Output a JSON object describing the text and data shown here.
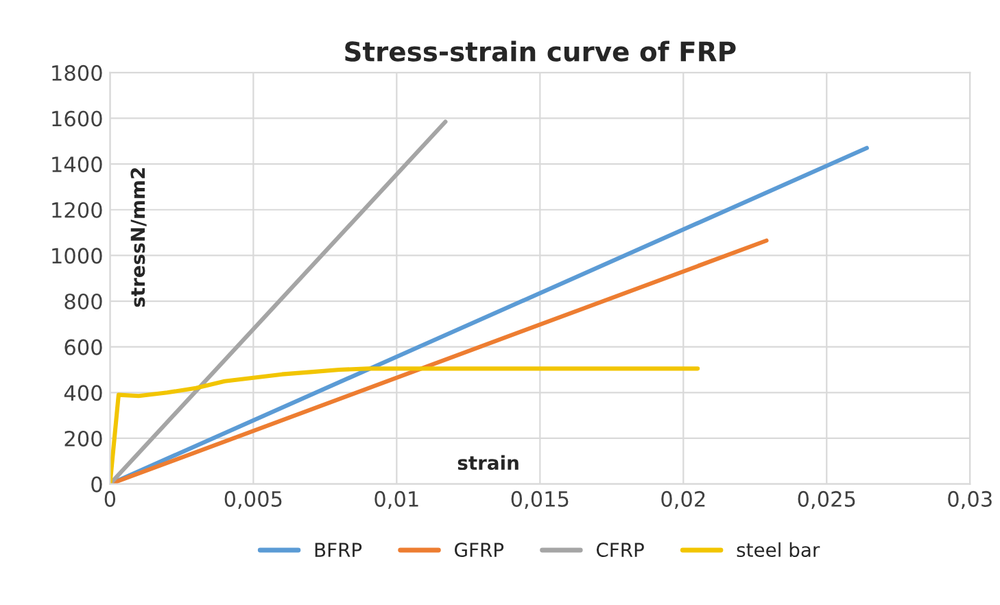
{
  "chart_data": {
    "type": "line",
    "title": "Stress-strain curve of FRP",
    "xlabel": "strain",
    "ylabel": "stressN/mm2",
    "series": [
      {
        "name": "BFRP",
        "color": "#5b9bd5",
        "x": [
          0,
          0.0264
        ],
        "values": [
          0,
          1470
        ]
      },
      {
        "name": "GFRP",
        "color": "#ed7d31",
        "x": [
          0,
          0.0229
        ],
        "values": [
          0,
          1065
        ]
      },
      {
        "name": "CFRP",
        "color": "#a5a5a5",
        "x": [
          0,
          0.0117
        ],
        "values": [
          0,
          1585
        ]
      },
      {
        "name": "steel bar",
        "color": "#f2c500",
        "x": [
          0,
          0.0003,
          0.001,
          0.002,
          0.003,
          0.004,
          0.005,
          0.006,
          0.007,
          0.008,
          0.009,
          0.0205
        ],
        "values": [
          0,
          390,
          385,
          400,
          420,
          450,
          465,
          480,
          490,
          500,
          505,
          505
        ]
      }
    ],
    "xlim": [
      0,
      0.03
    ],
    "xticks": [
      0,
      {
        "value": 0.005,
        "label": "0,005"
      },
      {
        "value": 0.01,
        "label": "0,01"
      },
      {
        "value": 0.015,
        "label": "0,015"
      },
      {
        "value": 0.02,
        "label": "0,02"
      },
      {
        "value": 0.025,
        "label": "0,025"
      },
      {
        "value": 0.03,
        "label": "0,03"
      }
    ],
    "ylim": [
      0,
      1800
    ],
    "yticks": [
      0,
      200,
      400,
      600,
      800,
      1000,
      1200,
      1400,
      1600,
      1800
    ],
    "grid": true,
    "legend": "bottom",
    "marker": "none",
    "line_style": "solid"
  }
}
